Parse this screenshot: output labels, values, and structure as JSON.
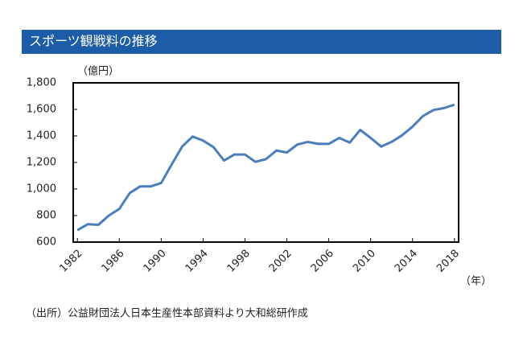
{
  "chart_data": {
    "type": "line",
    "title": "スポーツ観戦料の推移",
    "y_label": "（億円）",
    "x_label": "（年）",
    "source": "（出所）公益財団法人日本生産性本部資料より大和総研作成",
    "color": "#4a7ebb",
    "x": [
      1982,
      1983,
      1984,
      1985,
      1986,
      1987,
      1988,
      1989,
      1990,
      1991,
      1992,
      1993,
      1994,
      1995,
      1996,
      1997,
      1998,
      1999,
      2000,
      2001,
      2002,
      2003,
      2004,
      2005,
      2006,
      2007,
      2008,
      2009,
      2010,
      2011,
      2012,
      2013,
      2014,
      2015,
      2016,
      2017,
      2018
    ],
    "values": [
      690,
      735,
      730,
      800,
      850,
      970,
      1020,
      1020,
      1045,
      1185,
      1320,
      1395,
      1365,
      1315,
      1215,
      1260,
      1260,
      1205,
      1225,
      1290,
      1275,
      1335,
      1355,
      1340,
      1340,
      1385,
      1350,
      1445,
      1385,
      1320,
      1355,
      1405,
      1470,
      1550,
      1595,
      1610,
      1635
    ],
    "xlim": [
      1981.6,
      2018.4
    ],
    "xticks": [
      1982,
      1986,
      1990,
      1994,
      1998,
      2002,
      2006,
      2010,
      2014,
      2018
    ],
    "ylim": [
      600,
      1800
    ],
    "yticks": [
      600,
      800,
      {
        "value": 1000,
        "label": "1,000"
      },
      {
        "value": 1200,
        "label": "1,200"
      },
      {
        "value": 1400,
        "label": "1,400"
      },
      {
        "value": 1600,
        "label": "1,600"
      },
      {
        "value": 1800,
        "label": "1,800"
      }
    ],
    "grid": false
  }
}
